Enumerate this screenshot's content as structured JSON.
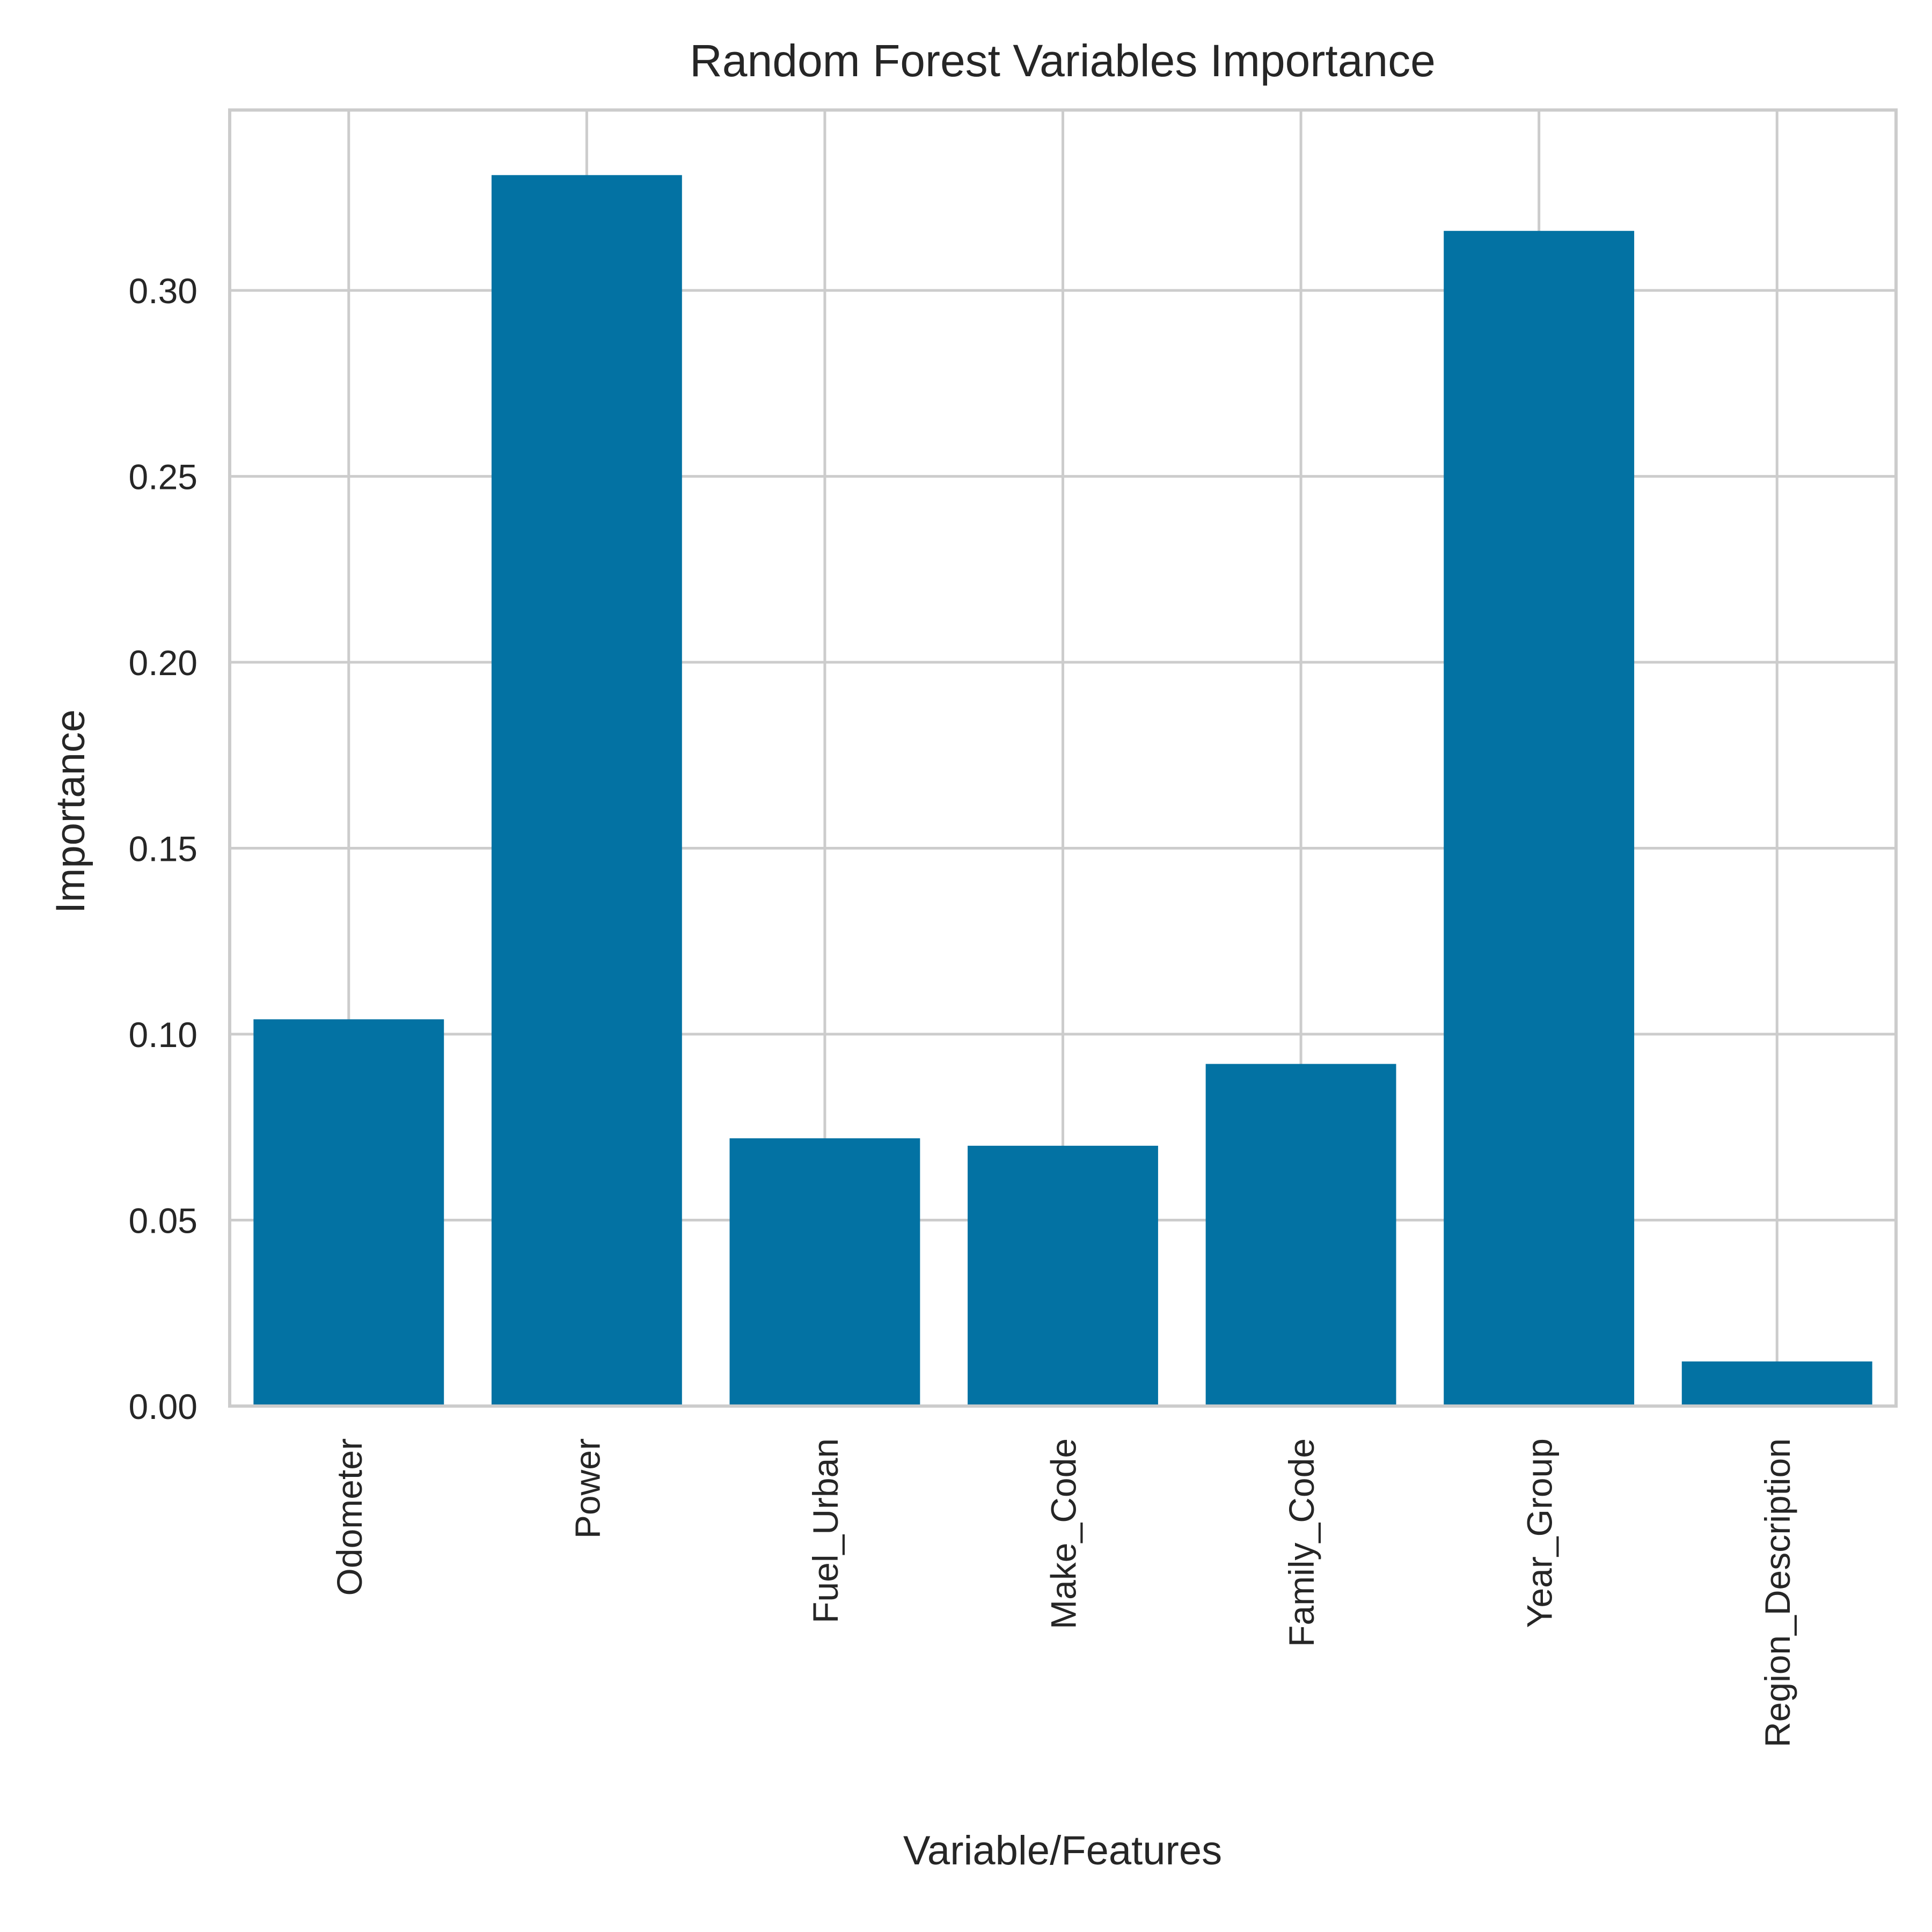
{
  "chart_data": {
    "type": "bar",
    "title": "Random Forest Variables Importance",
    "xlabel": "Variable/Features",
    "ylabel": "Importance",
    "categories": [
      "Odometer",
      "Power",
      "Fuel_Urban",
      "Make_Code",
      "Family_Code",
      "Year_Group",
      "Region_Description"
    ],
    "values": [
      0.104,
      0.331,
      0.072,
      0.07,
      0.092,
      0.316,
      0.012
    ],
    "yticks": [
      0.0,
      0.05,
      0.1,
      0.15,
      0.2,
      0.25,
      0.3
    ],
    "ytick_labels": [
      "0.00",
      "0.05",
      "0.10",
      "0.15",
      "0.20",
      "0.25",
      "0.30"
    ],
    "ylim": [
      0,
      0.3485
    ],
    "grid": true,
    "bar_color": "#0372a3",
    "grid_color": "#cccccc",
    "text_color": "#262626"
  }
}
